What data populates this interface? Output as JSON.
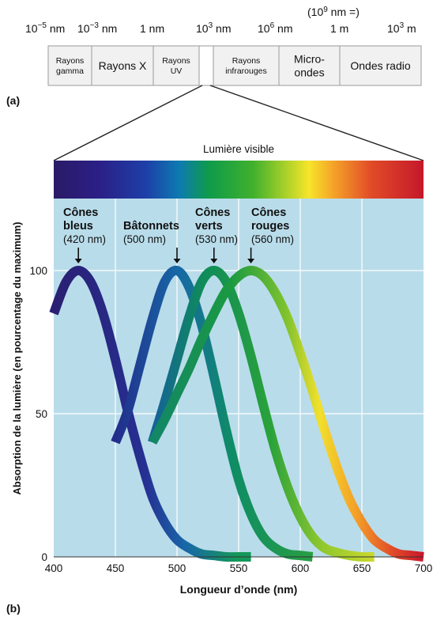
{
  "panel_a": {
    "label": "(a)",
    "scale_labels": [
      {
        "base": "10",
        "exp": "−5",
        "unit": " nm"
      },
      {
        "base": "10",
        "exp": "−3",
        "unit": " nm"
      },
      {
        "base": "",
        "exp": "",
        "unit": "1 nm"
      },
      {
        "base": "10",
        "exp": "3",
        "unit": " nm"
      },
      {
        "base": "10",
        "exp": "6",
        "unit": " nm"
      },
      {
        "base": "",
        "exp": "",
        "unit": "1 m"
      },
      {
        "base": "10",
        "exp": "3",
        "unit": " m"
      }
    ],
    "note": {
      "pre": "(10",
      "exp": "9",
      "post": " nm =)"
    },
    "segments": [
      {
        "lines": [
          "Rayons",
          "gamma"
        ],
        "size": "small"
      },
      {
        "lines": [
          "Rayons X"
        ],
        "size": "large"
      },
      {
        "lines": [
          "Rayons",
          "UV"
        ],
        "size": "small"
      },
      {
        "lines": [
          ""
        ],
        "size": "small"
      },
      {
        "lines": [
          "Rayons",
          "infrarouges"
        ],
        "size": "small"
      },
      {
        "lines": [
          "Micro-",
          "ondes"
        ],
        "size": "large"
      },
      {
        "lines": [
          "Ondes radio"
        ],
        "size": "large"
      }
    ]
  },
  "panel_b": {
    "label": "(b)"
  },
  "spectrum_title": "Lumière visible",
  "chart_data": {
    "type": "line",
    "title": "",
    "xlabel": "Longueur d’onde (nm)",
    "ylabel": "Absorption de la lumière (en pourcentage du maximum)",
    "xlim": [
      400,
      700
    ],
    "ylim": [
      0,
      100
    ],
    "x_ticks": [
      400,
      450,
      500,
      550,
      600,
      650,
      700
    ],
    "y_ticks": [
      0,
      50,
      100
    ],
    "grid": true,
    "series": [
      {
        "name": "Cônes bleus",
        "label_lines": [
          "Cônes",
          "bleus",
          "(420 nm)"
        ],
        "peak": 420,
        "x": [
          400,
          410,
          420,
          430,
          440,
          450,
          460,
          470,
          480,
          490,
          500,
          510,
          520,
          530,
          540,
          550,
          560
        ],
        "y": [
          85,
          96,
          100,
          96,
          85,
          69,
          51,
          35,
          21,
          12,
          6,
          3,
          1,
          0.5,
          0,
          0,
          0
        ]
      },
      {
        "name": "Bâtonnets",
        "label_lines": [
          "Bâtonnets",
          "(500 nm)"
        ],
        "peak": 500,
        "x": [
          450,
          460,
          470,
          480,
          490,
          500,
          510,
          520,
          530,
          540,
          550,
          560,
          570,
          580,
          590,
          600,
          610
        ],
        "y": [
          40,
          51,
          67,
          83,
          96,
          100,
          94,
          81,
          63,
          44,
          27,
          15,
          7,
          3,
          1,
          0.5,
          0
        ]
      },
      {
        "name": "Cônes verts",
        "label_lines": [
          "Cônes",
          "verts",
          "(530 nm)"
        ],
        "peak": 530,
        "x": [
          480,
          490,
          500,
          510,
          520,
          530,
          540,
          550,
          560,
          570,
          580,
          590,
          600,
          610,
          620,
          630,
          640,
          650,
          660
        ],
        "y": [
          40,
          54,
          69,
          84,
          96,
          100,
          96,
          85,
          70,
          53,
          37,
          24,
          14,
          7,
          3,
          1.5,
          0.5,
          0,
          0
        ]
      },
      {
        "name": "Cônes rouges",
        "label_lines": [
          "Cônes",
          "rouges",
          "(560 nm)"
        ],
        "peak": 560,
        "x": [
          480,
          490,
          500,
          510,
          520,
          530,
          540,
          550,
          560,
          570,
          580,
          590,
          600,
          610,
          620,
          630,
          640,
          650,
          660,
          670,
          680,
          690,
          700
        ],
        "y": [
          40,
          48,
          57,
          66,
          76,
          85,
          93,
          98,
          100,
          98,
          92,
          83,
          71,
          58,
          44,
          31,
          20,
          12,
          6,
          3,
          1,
          0.5,
          0
        ]
      }
    ]
  },
  "colors": {
    "plot_bg": "#b9dcea",
    "grid": "#ffffff",
    "box_fill": "#f1f1f1",
    "box_stroke": "#9a9a9a"
  }
}
